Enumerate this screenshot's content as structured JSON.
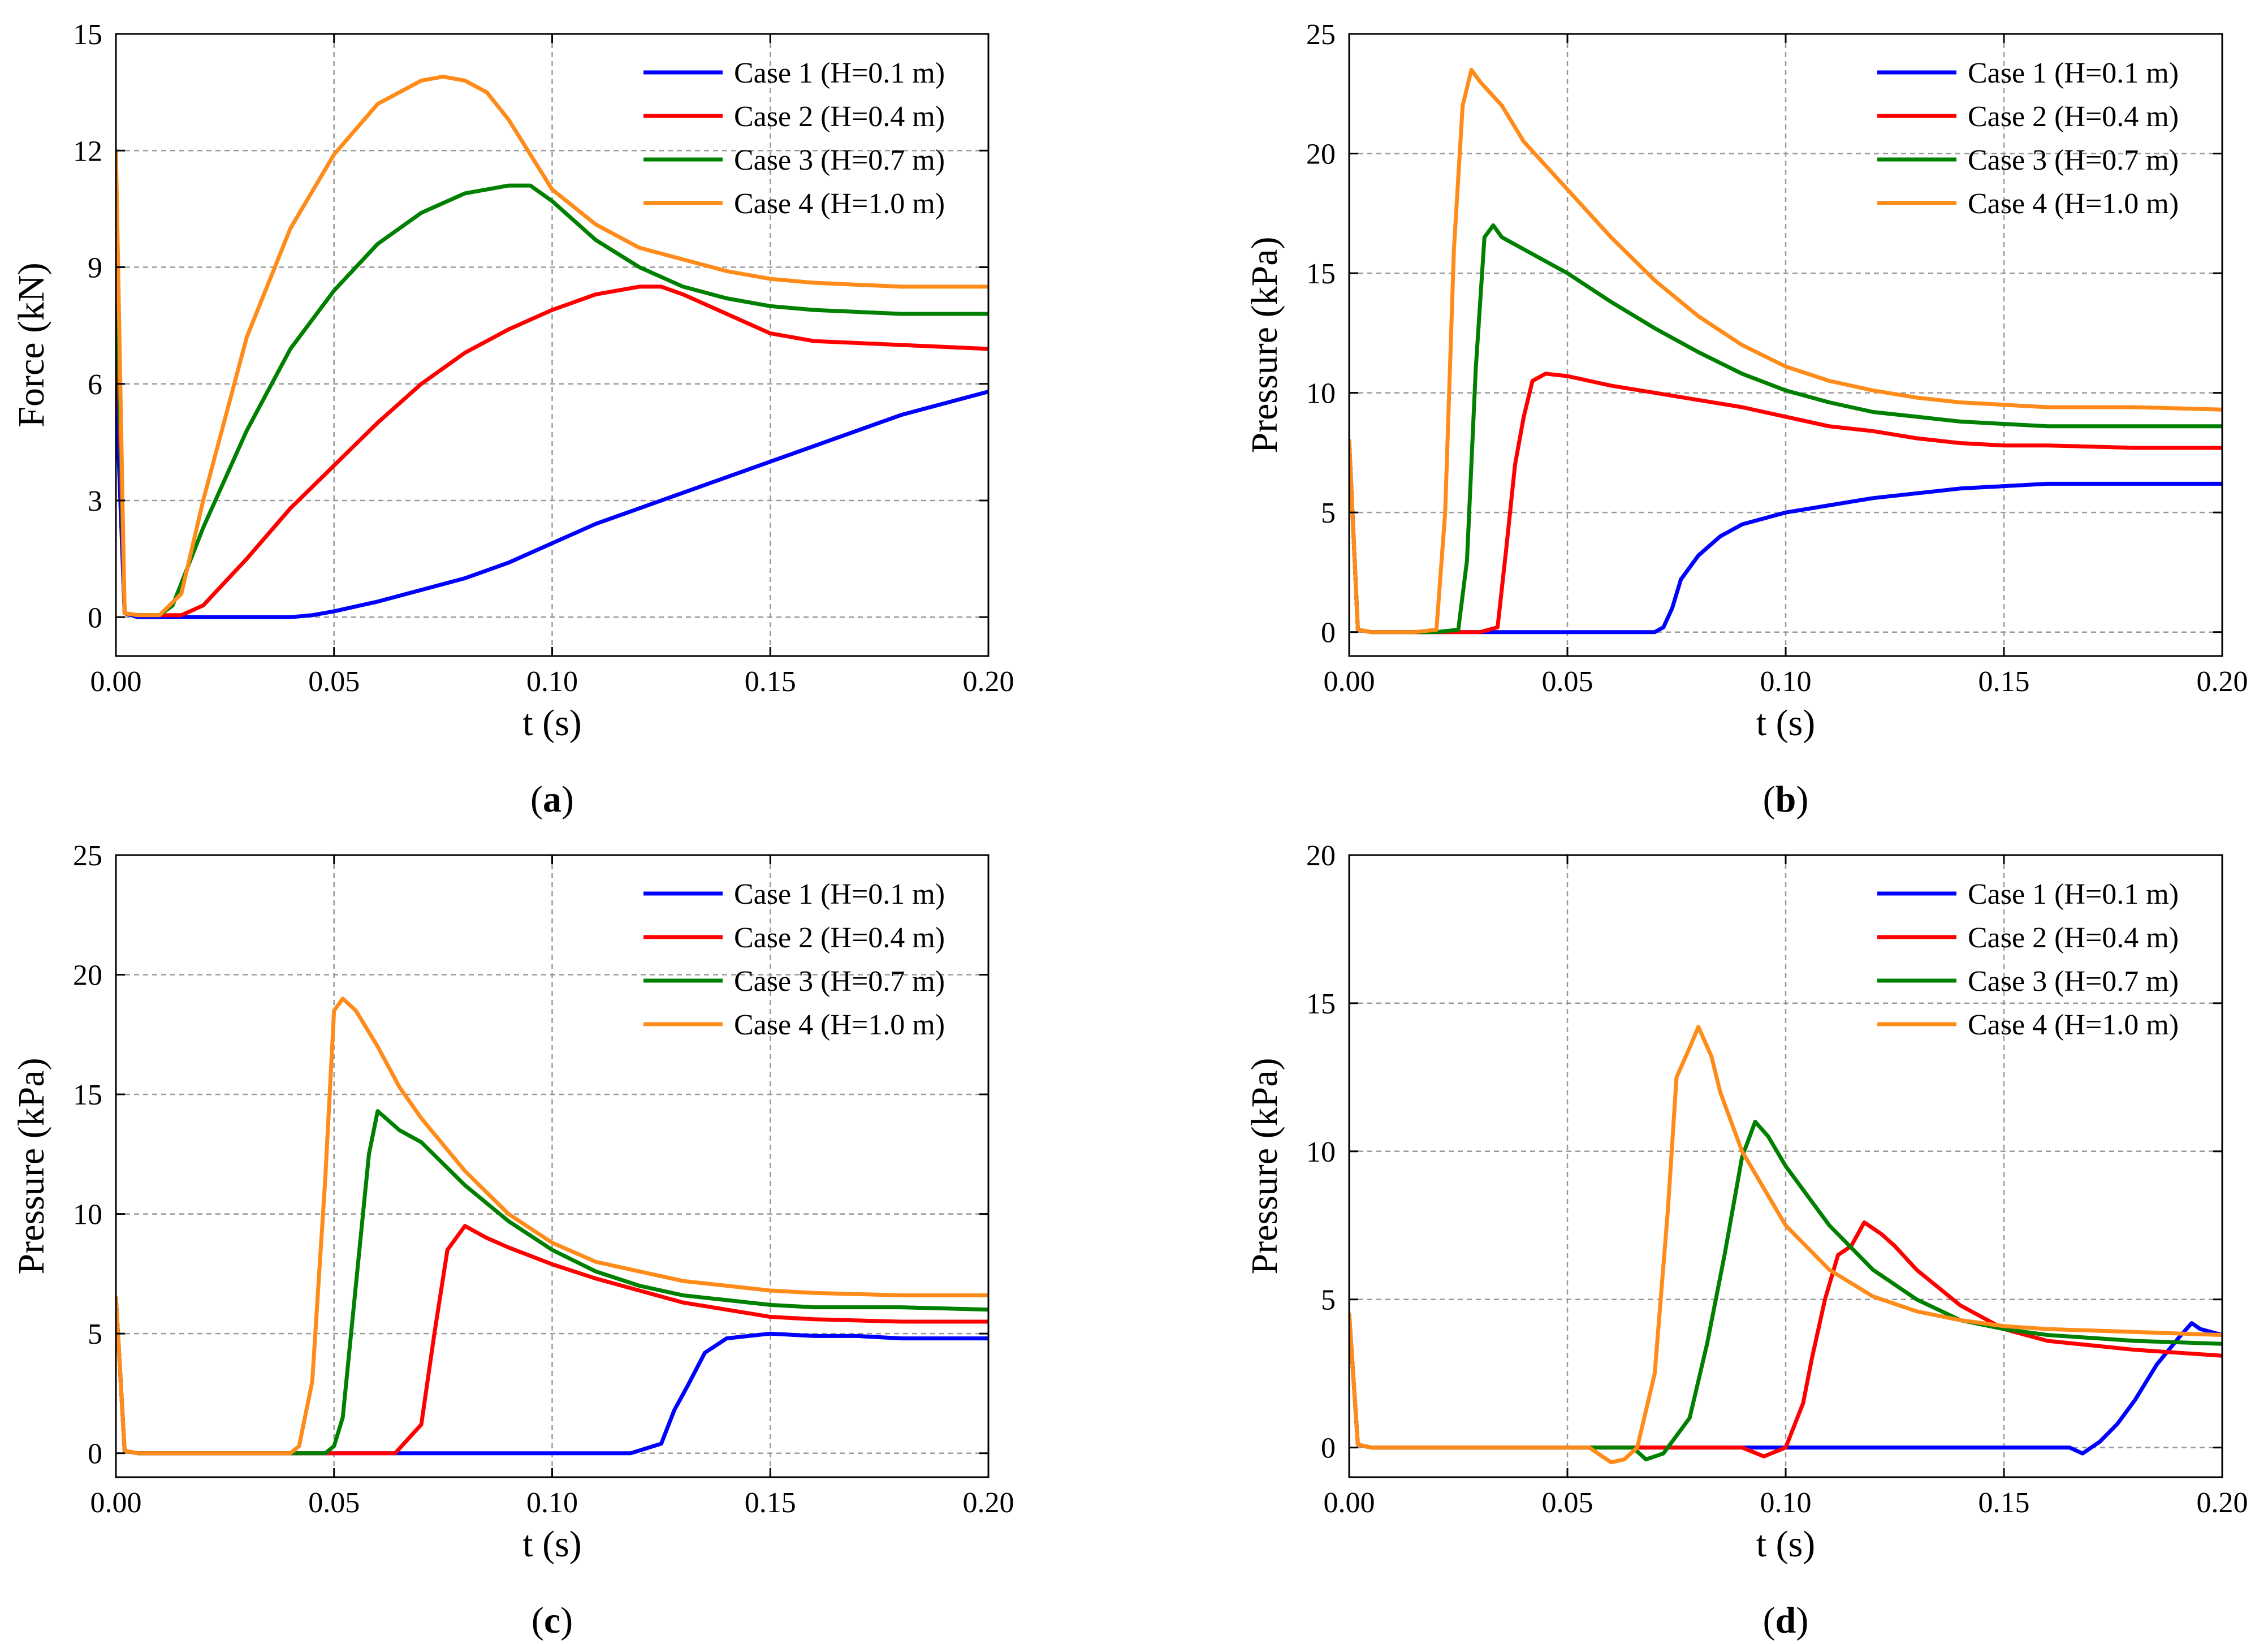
{
  "colors": {
    "case1": "#0000ff",
    "case2": "#ff0000",
    "case3": "#008000",
    "case4": "#ff8c1a"
  },
  "chart_data": [
    {
      "panel": "(a)",
      "panel_letter": "a",
      "type": "line",
      "xlabel": "t (s)",
      "ylabel": "Force (kN)",
      "xlim": [
        0,
        0.2
      ],
      "ylim": [
        -1,
        15
      ],
      "xticks": [
        0,
        0.05,
        0.1,
        0.15,
        0.2
      ],
      "xtick_labels": [
        "0.00",
        "0.05",
        "0.10",
        "0.15",
        "0.20"
      ],
      "yticks": [
        0,
        3,
        6,
        9,
        12,
        15
      ],
      "ytick_labels": [
        "0",
        "3",
        "6",
        "9",
        "12",
        "15"
      ],
      "grid": true,
      "legend_position": "top-right",
      "series": [
        {
          "name": "Case 1 (H=0.1 m)",
          "color_key": "case1",
          "x": [
            0,
            0.002,
            0.005,
            0.01,
            0.02,
            0.03,
            0.04,
            0.045,
            0.05,
            0.06,
            0.07,
            0.08,
            0.09,
            0.1,
            0.11,
            0.12,
            0.13,
            0.14,
            0.15,
            0.16,
            0.17,
            0.18,
            0.19,
            0.2
          ],
          "y": [
            6,
            0.1,
            0,
            0,
            0,
            0,
            0,
            0.05,
            0.15,
            0.4,
            0.7,
            1.0,
            1.4,
            1.9,
            2.4,
            2.8,
            3.2,
            3.6,
            4.0,
            4.4,
            4.8,
            5.2,
            5.5,
            5.8
          ]
        },
        {
          "name": "Case 2 (H=0.4 m)",
          "color_key": "case2",
          "x": [
            0,
            0.002,
            0.005,
            0.01,
            0.015,
            0.02,
            0.03,
            0.04,
            0.05,
            0.06,
            0.07,
            0.08,
            0.09,
            0.1,
            0.11,
            0.12,
            0.125,
            0.13,
            0.14,
            0.15,
            0.16,
            0.18,
            0.2
          ],
          "y": [
            9,
            0.1,
            0.05,
            0.05,
            0.05,
            0.3,
            1.5,
            2.8,
            3.9,
            5.0,
            6.0,
            6.8,
            7.4,
            7.9,
            8.3,
            8.5,
            8.5,
            8.3,
            7.8,
            7.3,
            7.1,
            7.0,
            6.9
          ]
        },
        {
          "name": "Case 3 (H=0.7 m)",
          "color_key": "case3",
          "x": [
            0,
            0.002,
            0.005,
            0.01,
            0.013,
            0.02,
            0.03,
            0.04,
            0.05,
            0.06,
            0.07,
            0.08,
            0.09,
            0.095,
            0.1,
            0.11,
            0.12,
            0.13,
            0.14,
            0.15,
            0.16,
            0.18,
            0.2
          ],
          "y": [
            10,
            0.1,
            0.05,
            0.05,
            0.3,
            2.3,
            4.8,
            6.9,
            8.4,
            9.6,
            10.4,
            10.9,
            11.1,
            11.1,
            10.7,
            9.7,
            9.0,
            8.5,
            8.2,
            8.0,
            7.9,
            7.8,
            7.8
          ]
        },
        {
          "name": "Case 4 (H=1.0 m)",
          "color_key": "case4",
          "x": [
            0,
            0.002,
            0.005,
            0.01,
            0.015,
            0.02,
            0.03,
            0.04,
            0.05,
            0.06,
            0.07,
            0.075,
            0.08,
            0.085,
            0.09,
            0.1,
            0.11,
            0.12,
            0.13,
            0.14,
            0.15,
            0.16,
            0.18,
            0.2
          ],
          "y": [
            12,
            0.1,
            0.05,
            0.05,
            0.6,
            3.0,
            7.2,
            10.0,
            11.9,
            13.2,
            13.8,
            13.9,
            13.8,
            13.5,
            12.8,
            11.0,
            10.1,
            9.5,
            9.2,
            8.9,
            8.7,
            8.6,
            8.5,
            8.5
          ]
        }
      ]
    },
    {
      "panel": "(b)",
      "panel_letter": "b",
      "type": "line",
      "xlabel": "t (s)",
      "ylabel": "Pressure (kPa)",
      "xlim": [
        0,
        0.2
      ],
      "ylim": [
        -1,
        25
      ],
      "xticks": [
        0,
        0.05,
        0.1,
        0.15,
        0.2
      ],
      "xtick_labels": [
        "0.00",
        "0.05",
        "0.10",
        "0.15",
        "0.20"
      ],
      "yticks": [
        0,
        5,
        10,
        15,
        20,
        25
      ],
      "ytick_labels": [
        "0",
        "5",
        "10",
        "15",
        "20",
        "25"
      ],
      "grid": true,
      "legend_position": "top-right",
      "series": [
        {
          "name": "Case 1 (H=0.1 m)",
          "color_key": "case1",
          "x": [
            0,
            0.002,
            0.005,
            0.02,
            0.04,
            0.06,
            0.07,
            0.072,
            0.074,
            0.076,
            0.08,
            0.085,
            0.09,
            0.1,
            0.11,
            0.12,
            0.13,
            0.14,
            0.15,
            0.16,
            0.18,
            0.2
          ],
          "y": [
            8,
            0.1,
            0,
            0,
            0,
            0,
            0,
            0.2,
            1.0,
            2.2,
            3.2,
            4.0,
            4.5,
            5.0,
            5.3,
            5.6,
            5.8,
            6.0,
            6.1,
            6.2,
            6.2,
            6.2
          ]
        },
        {
          "name": "Case 2 (H=0.4 m)",
          "color_key": "case2",
          "x": [
            0,
            0.002,
            0.005,
            0.02,
            0.03,
            0.034,
            0.036,
            0.038,
            0.04,
            0.042,
            0.045,
            0.05,
            0.055,
            0.06,
            0.07,
            0.08,
            0.09,
            0.1,
            0.11,
            0.12,
            0.13,
            0.14,
            0.15,
            0.16,
            0.18,
            0.2
          ],
          "y": [
            8,
            0.1,
            0,
            0,
            0,
            0.2,
            3.5,
            7.0,
            9.0,
            10.5,
            10.8,
            10.7,
            10.5,
            10.3,
            10.0,
            9.7,
            9.4,
            9.0,
            8.6,
            8.4,
            8.1,
            7.9,
            7.8,
            7.8,
            7.7,
            7.7
          ]
        },
        {
          "name": "Case 3 (H=0.7 m)",
          "color_key": "case3",
          "x": [
            0,
            0.002,
            0.005,
            0.02,
            0.025,
            0.027,
            0.029,
            0.031,
            0.033,
            0.035,
            0.04,
            0.05,
            0.06,
            0.07,
            0.08,
            0.09,
            0.1,
            0.11,
            0.12,
            0.13,
            0.14,
            0.15,
            0.16,
            0.18,
            0.2
          ],
          "y": [
            8,
            0.1,
            0,
            0,
            0.1,
            3.0,
            11.0,
            16.5,
            17.0,
            16.5,
            16.0,
            15.0,
            13.8,
            12.7,
            11.7,
            10.8,
            10.1,
            9.6,
            9.2,
            9.0,
            8.8,
            8.7,
            8.6,
            8.6,
            8.6
          ]
        },
        {
          "name": "Case 4 (H=1.0 m)",
          "color_key": "case4",
          "x": [
            0,
            0.002,
            0.005,
            0.015,
            0.02,
            0.022,
            0.024,
            0.026,
            0.028,
            0.03,
            0.035,
            0.04,
            0.05,
            0.06,
            0.07,
            0.08,
            0.09,
            0.1,
            0.11,
            0.12,
            0.13,
            0.14,
            0.15,
            0.16,
            0.18,
            0.2
          ],
          "y": [
            8,
            0.1,
            0,
            0,
            0.1,
            5.0,
            16.0,
            22.0,
            23.5,
            23.0,
            22.0,
            20.5,
            18.5,
            16.5,
            14.7,
            13.2,
            12.0,
            11.1,
            10.5,
            10.1,
            9.8,
            9.6,
            9.5,
            9.4,
            9.4,
            9.3
          ]
        }
      ]
    },
    {
      "panel": "(c)",
      "panel_letter": "c",
      "type": "line",
      "xlabel": "t (s)",
      "ylabel": "Pressure (kPa)",
      "xlim": [
        0,
        0.2
      ],
      "ylim": [
        -1,
        25
      ],
      "xticks": [
        0,
        0.05,
        0.1,
        0.15,
        0.2
      ],
      "xtick_labels": [
        "0.00",
        "0.05",
        "0.10",
        "0.15",
        "0.20"
      ],
      "yticks": [
        0,
        5,
        10,
        15,
        20,
        25
      ],
      "ytick_labels": [
        "0",
        "5",
        "10",
        "15",
        "20",
        "25"
      ],
      "grid": true,
      "legend_position": "top-right",
      "series": [
        {
          "name": "Case 1 (H=0.1 m)",
          "color_key": "case1",
          "x": [
            0,
            0.002,
            0.005,
            0.05,
            0.1,
            0.118,
            0.125,
            0.128,
            0.131,
            0.135,
            0.14,
            0.145,
            0.15,
            0.16,
            0.17,
            0.18,
            0.19,
            0.2
          ],
          "y": [
            6.5,
            0.1,
            0,
            0,
            0,
            0,
            0.4,
            1.8,
            2.8,
            4.2,
            4.8,
            4.9,
            5.0,
            4.9,
            4.9,
            4.8,
            4.8,
            4.8
          ]
        },
        {
          "name": "Case 2 (H=0.4 m)",
          "color_key": "case2",
          "x": [
            0,
            0.002,
            0.005,
            0.06,
            0.064,
            0.07,
            0.073,
            0.076,
            0.08,
            0.085,
            0.09,
            0.1,
            0.11,
            0.12,
            0.13,
            0.14,
            0.15,
            0.16,
            0.18,
            0.2
          ],
          "y": [
            6.5,
            0.1,
            0,
            0,
            0,
            1.2,
            5.0,
            8.5,
            9.5,
            9.0,
            8.6,
            7.9,
            7.3,
            6.8,
            6.3,
            6.0,
            5.7,
            5.6,
            5.5,
            5.5
          ]
        },
        {
          "name": "Case 3 (H=0.7 m)",
          "color_key": "case3",
          "x": [
            0,
            0.002,
            0.005,
            0.04,
            0.048,
            0.05,
            0.052,
            0.055,
            0.058,
            0.06,
            0.065,
            0.07,
            0.08,
            0.09,
            0.1,
            0.11,
            0.12,
            0.13,
            0.14,
            0.15,
            0.16,
            0.18,
            0.2
          ],
          "y": [
            6.5,
            0.1,
            0,
            0,
            0,
            0.3,
            1.5,
            7.0,
            12.5,
            14.3,
            13.5,
            13.0,
            11.2,
            9.7,
            8.5,
            7.6,
            7.0,
            6.6,
            6.4,
            6.2,
            6.1,
            6.1,
            6.0
          ]
        },
        {
          "name": "Case 4 (H=1.0 m)",
          "color_key": "case4",
          "x": [
            0,
            0.002,
            0.005,
            0.035,
            0.04,
            0.042,
            0.045,
            0.048,
            0.05,
            0.052,
            0.055,
            0.06,
            0.065,
            0.07,
            0.08,
            0.09,
            0.1,
            0.11,
            0.12,
            0.13,
            0.14,
            0.15,
            0.16,
            0.18,
            0.2
          ],
          "y": [
            6.5,
            0.1,
            0,
            0,
            0,
            0.3,
            3.0,
            11.5,
            18.5,
            19.0,
            18.5,
            17.0,
            15.3,
            14.0,
            11.8,
            10.0,
            8.8,
            8.0,
            7.6,
            7.2,
            7.0,
            6.8,
            6.7,
            6.6,
            6.6
          ]
        }
      ]
    },
    {
      "panel": "(d)",
      "panel_letter": "d",
      "type": "line",
      "xlabel": "t (s)",
      "ylabel": "Pressure (kPa)",
      "xlim": [
        0,
        0.2
      ],
      "ylim": [
        -1,
        20
      ],
      "xticks": [
        0,
        0.05,
        0.1,
        0.15,
        0.2
      ],
      "xtick_labels": [
        "0.00",
        "0.05",
        "0.10",
        "0.15",
        "0.20"
      ],
      "yticks": [
        0,
        5,
        10,
        15,
        20
      ],
      "ytick_labels": [
        "0",
        "5",
        "10",
        "15",
        "20"
      ],
      "grid": true,
      "legend_position": "top-right",
      "series": [
        {
          "name": "Case 1 (H=0.1 m)",
          "color_key": "case1",
          "x": [
            0,
            0.002,
            0.005,
            0.1,
            0.15,
            0.165,
            0.168,
            0.172,
            0.176,
            0.18,
            0.185,
            0.19,
            0.193,
            0.195,
            0.2
          ],
          "y": [
            4.5,
            0.1,
            0,
            0,
            0,
            0,
            -0.2,
            0.2,
            0.8,
            1.6,
            2.8,
            3.7,
            4.2,
            4.0,
            3.8
          ]
        },
        {
          "name": "Case 2 (H=0.4 m)",
          "color_key": "case2",
          "x": [
            0,
            0.002,
            0.005,
            0.09,
            0.095,
            0.1,
            0.104,
            0.106,
            0.109,
            0.112,
            0.115,
            0.118,
            0.122,
            0.125,
            0.13,
            0.14,
            0.15,
            0.16,
            0.18,
            0.2
          ],
          "y": [
            4.5,
            0.1,
            0,
            0,
            -0.3,
            0,
            1.5,
            3.0,
            5.0,
            6.5,
            6.8,
            7.6,
            7.2,
            6.8,
            6.0,
            4.8,
            4.0,
            3.6,
            3.3,
            3.1
          ]
        },
        {
          "name": "Case 3 (H=0.7 m)",
          "color_key": "case3",
          "x": [
            0,
            0.002,
            0.005,
            0.065,
            0.068,
            0.072,
            0.078,
            0.082,
            0.086,
            0.09,
            0.093,
            0.096,
            0.1,
            0.11,
            0.12,
            0.13,
            0.14,
            0.15,
            0.16,
            0.18,
            0.2
          ],
          "y": [
            4.5,
            0.1,
            0,
            0,
            -0.4,
            -0.2,
            1.0,
            3.5,
            6.5,
            9.8,
            11.0,
            10.5,
            9.5,
            7.5,
            6.0,
            5.0,
            4.3,
            4.0,
            3.8,
            3.6,
            3.5
          ]
        },
        {
          "name": "Case 4 (H=1.0 m)",
          "color_key": "case4",
          "x": [
            0,
            0.002,
            0.005,
            0.055,
            0.06,
            0.063,
            0.066,
            0.07,
            0.073,
            0.075,
            0.078,
            0.08,
            0.083,
            0.085,
            0.09,
            0.1,
            0.11,
            0.12,
            0.13,
            0.14,
            0.15,
            0.16,
            0.18,
            0.2
          ],
          "y": [
            4.5,
            0.1,
            0,
            0,
            -0.5,
            -0.4,
            0,
            2.5,
            8.0,
            12.5,
            13.5,
            14.2,
            13.2,
            12.0,
            10.0,
            7.5,
            6.0,
            5.1,
            4.6,
            4.3,
            4.1,
            4.0,
            3.9,
            3.8
          ]
        }
      ]
    }
  ]
}
